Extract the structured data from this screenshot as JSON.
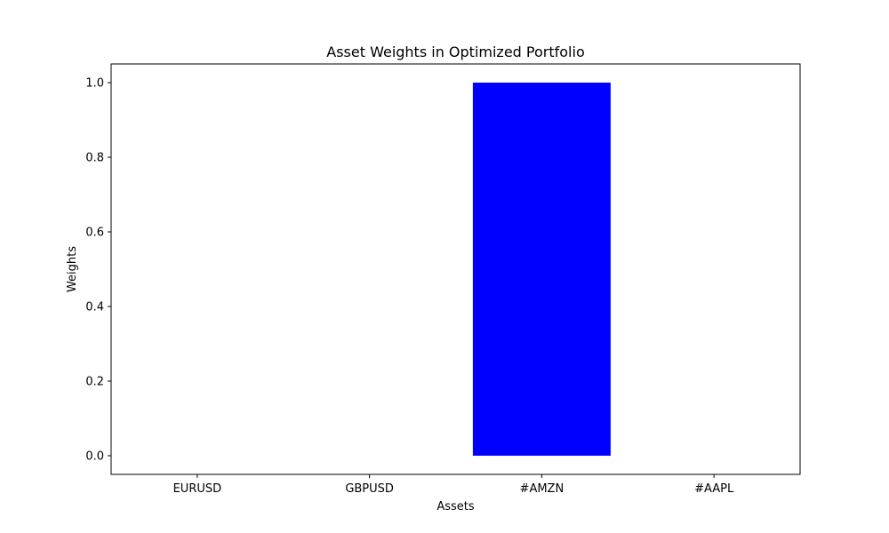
{
  "chart_data": {
    "type": "bar",
    "title": "Asset Weights in Optimized Portfolio",
    "xlabel": "Assets",
    "ylabel": "Weights",
    "categories": [
      "EURUSD",
      "GBPUSD",
      "#AMZN",
      "#AAPL"
    ],
    "values": [
      0.0,
      0.0,
      1.0,
      0.0
    ],
    "ylim": [
      -0.05,
      1.05
    ],
    "yticks": [
      0.0,
      0.2,
      0.4,
      0.6,
      0.8,
      1.0
    ],
    "ytick_labels": [
      "0.0",
      "0.2",
      "0.4",
      "0.6",
      "0.8",
      "1.0"
    ],
    "bar_color": "#0000ff",
    "grid": false,
    "legend": "none"
  }
}
